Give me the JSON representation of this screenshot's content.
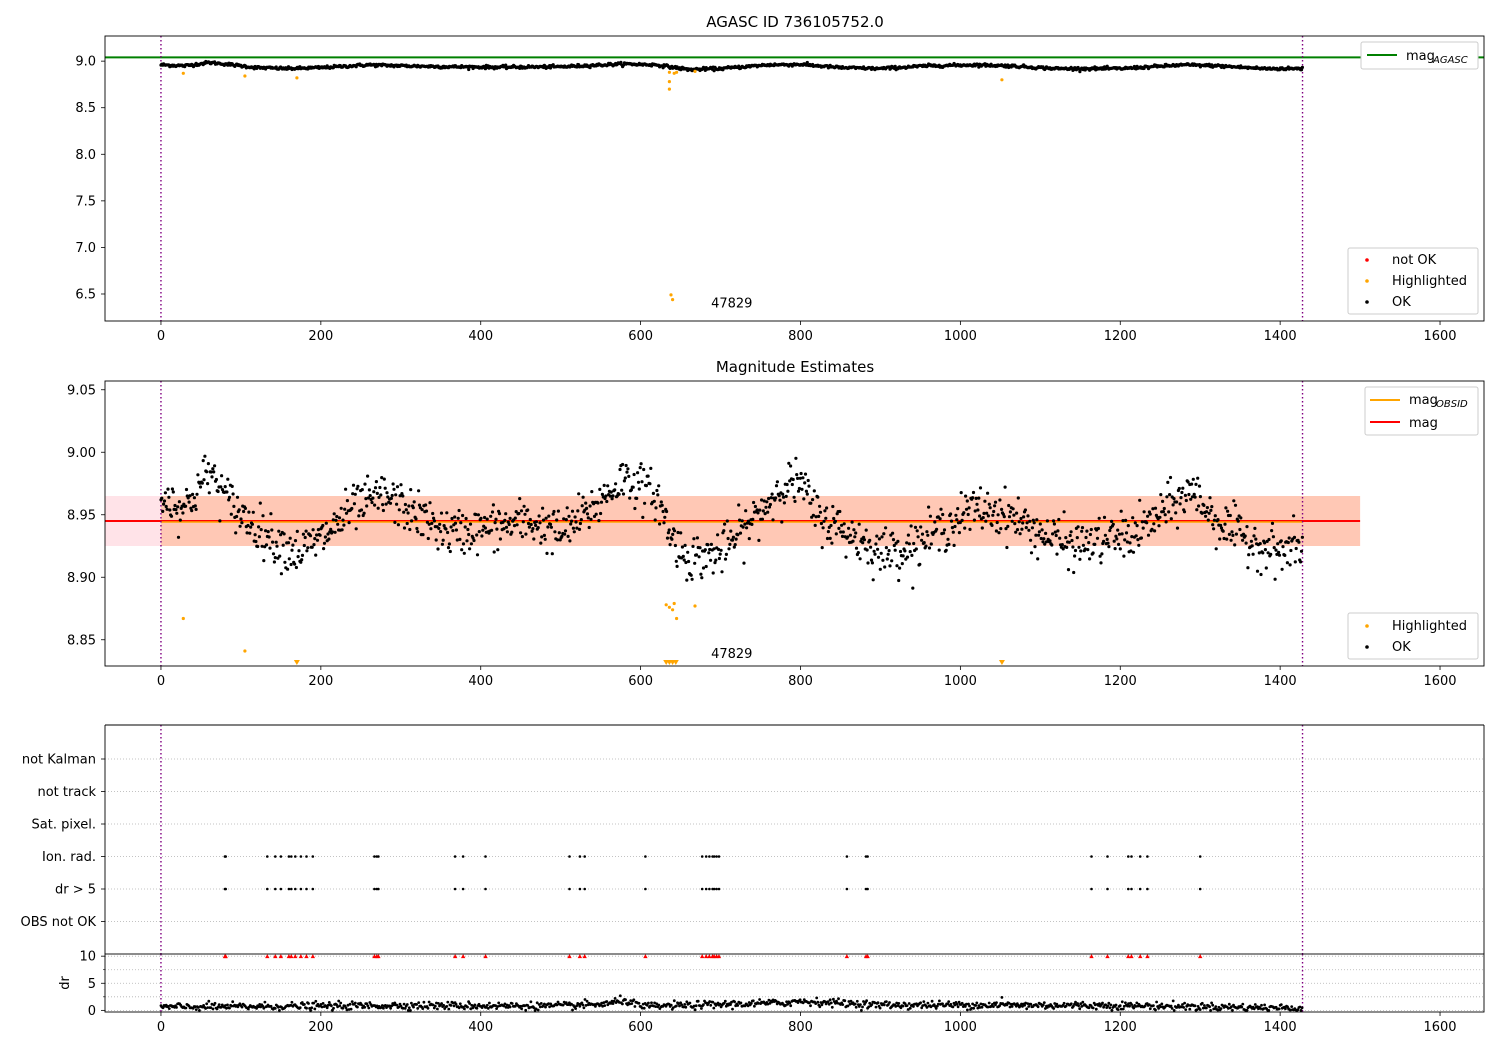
{
  "colors": {
    "ok": "#000000",
    "highlighted": "#ffa500",
    "not_ok": "#ff0000",
    "mag_agasc": "#008000",
    "mag": "#ff0000",
    "mag_obsid": "#ffa500",
    "band_outer": "#ffc0cb",
    "band_inner": "#ffb38a",
    "obs_boundary": "#800080",
    "grid": "#b0b0b0"
  },
  "chart_data": [
    {
      "type": "scatter",
      "title": "AGASC ID 736105752.0",
      "xlabel": "",
      "ylabel": "",
      "xlim": [
        -70,
        1655
      ],
      "ylim": [
        6.21,
        9.27
      ],
      "xticks": [
        0,
        200,
        400,
        600,
        800,
        1000,
        1200,
        1400,
        1600
      ],
      "yticks": [
        6.5,
        7.0,
        7.5,
        8.0,
        8.5,
        9.0
      ],
      "ytick_labels": [
        "6.5",
        "7.0",
        "7.5",
        "8.0",
        "8.5",
        "9.0"
      ],
      "hlines": [
        {
          "name": "mag_AGASC",
          "label_main": "mag",
          "label_sub": "AGASC",
          "y": 9.04,
          "color": "#008000"
        }
      ],
      "obs_boundaries": [
        0,
        1428
      ],
      "obsid_labels": [
        {
          "text": "47829",
          "x": 714,
          "y": 6.25
        }
      ],
      "legends": [
        {
          "placement": "top-right",
          "entries": [
            {
              "label_main": "mag",
              "label_sub": "AGASC",
              "kind": "line",
              "color": "#008000"
            }
          ]
        },
        {
          "placement": "bottom-right",
          "entries": [
            {
              "label": "not OK",
              "kind": "dot",
              "color": "#ff0000"
            },
            {
              "label": "Highlighted",
              "kind": "dot",
              "color": "#ffa500"
            },
            {
              "label": "OK",
              "kind": "dot",
              "color": "#000000"
            }
          ]
        }
      ],
      "series": [
        {
          "name": "OK",
          "color": "#000000",
          "baseline": [
            [
              0,
              8.96
            ],
            [
              30,
              8.95
            ],
            [
              60,
              8.985
            ],
            [
              80,
              8.97
            ],
            [
              120,
              8.93
            ],
            [
              160,
              8.92
            ],
            [
              200,
              8.93
            ],
            [
              260,
              8.96
            ],
            [
              300,
              8.95
            ],
            [
              360,
              8.94
            ],
            [
              420,
              8.935
            ],
            [
              500,
              8.94
            ],
            [
              580,
              8.97
            ],
            [
              620,
              8.96
            ],
            [
              660,
              8.91
            ],
            [
              700,
              8.92
            ],
            [
              760,
              8.96
            ],
            [
              800,
              8.965
            ],
            [
              850,
              8.93
            ],
            [
              900,
              8.92
            ],
            [
              960,
              8.95
            ],
            [
              1020,
              8.96
            ],
            [
              1060,
              8.95
            ],
            [
              1120,
              8.92
            ],
            [
              1200,
              8.92
            ],
            [
              1280,
              8.96
            ],
            [
              1320,
              8.95
            ],
            [
              1380,
              8.92
            ],
            [
              1428,
              8.92
            ]
          ],
          "noise": 0.008,
          "x_range": [
            0,
            1428
          ],
          "step": 1.1
        },
        {
          "name": "Highlighted",
          "color": "#ffa500",
          "points": [
            [
              28,
              8.87
            ],
            [
              105,
              8.84
            ],
            [
              170,
              8.82
            ],
            [
              636,
              8.7
            ],
            [
              636,
              8.78
            ],
            [
              636,
              8.88
            ],
            [
              638,
              6.49
            ],
            [
              640,
              6.44
            ],
            [
              642,
              8.87
            ],
            [
              645,
              8.88
            ],
            [
              668,
              8.89
            ],
            [
              1052,
              8.8
            ]
          ]
        }
      ]
    },
    {
      "type": "scatter",
      "title": "Magnitude Estimates",
      "xlabel": "",
      "ylabel": "",
      "xlim": [
        -70,
        1655
      ],
      "ylim": [
        8.829,
        9.057
      ],
      "xticks": [
        0,
        200,
        400,
        600,
        800,
        1000,
        1200,
        1400,
        1600
      ],
      "yticks": [
        8.85,
        8.9,
        8.95,
        9.0,
        9.05
      ],
      "ytick_labels": [
        "8.85",
        "8.90",
        "8.95",
        "9.00",
        "9.05"
      ],
      "hlines": [
        {
          "name": "mag_OBSID",
          "y": 8.945,
          "x_range": [
            0,
            1428
          ],
          "color": "#ffa500"
        },
        {
          "name": "mag",
          "y": 8.945,
          "color": "#ff0000"
        }
      ],
      "bands": [
        {
          "y0": 8.925,
          "y1": 8.965,
          "x_range": [
            -70,
            1500
          ],
          "color": "#ffc0cb"
        },
        {
          "y0": 8.925,
          "y1": 8.965,
          "x_range": [
            0,
            1500
          ],
          "color": "#ffb38a"
        }
      ],
      "obs_boundaries": [
        0,
        1428
      ],
      "obsid_labels": [
        {
          "text": "47829",
          "x": 714,
          "y": 8.831
        }
      ],
      "legends": [
        {
          "placement": "top-right",
          "entries": [
            {
              "label_main": "mag",
              "label_sub": "OBSID",
              "kind": "line",
              "color": "#ffa500"
            },
            {
              "label": "mag",
              "kind": "line",
              "color": "#ff0000"
            }
          ]
        },
        {
          "placement": "bottom-right",
          "entries": [
            {
              "label": "Highlighted",
              "kind": "dot",
              "color": "#ffa500"
            },
            {
              "label": "OK",
              "kind": "dot",
              "color": "#000000"
            }
          ]
        }
      ],
      "series": [
        {
          "name": "OK",
          "color": "#000000",
          "baseline": [
            [
              0,
              8.965
            ],
            [
              30,
              8.955
            ],
            [
              60,
              8.985
            ],
            [
              80,
              8.965
            ],
            [
              100,
              8.95
            ],
            [
              140,
              8.93
            ],
            [
              170,
              8.92
            ],
            [
              200,
              8.93
            ],
            [
              240,
              8.955
            ],
            [
              280,
              8.965
            ],
            [
              320,
              8.95
            ],
            [
              360,
              8.935
            ],
            [
              420,
              8.94
            ],
            [
              460,
              8.945
            ],
            [
              500,
              8.935
            ],
            [
              540,
              8.955
            ],
            [
              580,
              8.98
            ],
            [
              620,
              8.965
            ],
            [
              640,
              8.93
            ],
            [
              660,
              8.915
            ],
            [
              700,
              8.92
            ],
            [
              740,
              8.945
            ],
            [
              780,
              8.975
            ],
            [
              800,
              8.975
            ],
            [
              820,
              8.95
            ],
            [
              860,
              8.935
            ],
            [
              900,
              8.92
            ],
            [
              940,
              8.925
            ],
            [
              980,
              8.94
            ],
            [
              1020,
              8.955
            ],
            [
              1060,
              8.95
            ],
            [
              1100,
              8.935
            ],
            [
              1140,
              8.925
            ],
            [
              1180,
              8.93
            ],
            [
              1220,
              8.935
            ],
            [
              1260,
              8.955
            ],
            [
              1290,
              8.97
            ],
            [
              1320,
              8.945
            ],
            [
              1360,
              8.93
            ],
            [
              1400,
              8.92
            ],
            [
              1428,
              8.925
            ]
          ],
          "noise": 0.009,
          "x_range": [
            0,
            1428
          ],
          "step": 1.1
        },
        {
          "name": "Highlighted",
          "color": "#ffa500",
          "points": [
            [
              28,
              8.867
            ],
            [
              105,
              8.841
            ],
            [
              632,
              8.878
            ],
            [
              636,
              8.876
            ],
            [
              640,
              8.874
            ],
            [
              642,
              8.879
            ],
            [
              645,
              8.867
            ],
            [
              668,
              8.877
            ]
          ]
        },
        {
          "name": "Highlighted-below-axis",
          "color": "#ffa500",
          "marker": "down-triangle",
          "points": [
            [
              170,
              8.829
            ],
            [
              632,
              8.829
            ],
            [
              636,
              8.829
            ],
            [
              640,
              8.829
            ],
            [
              644,
              8.829
            ],
            [
              1052,
              8.829
            ]
          ]
        }
      ]
    },
    {
      "type": "scatter",
      "title": "",
      "xlabel": "",
      "ylabel": "",
      "xlim": [
        -70,
        1655
      ],
      "xticks": [
        0,
        200,
        400,
        600,
        800,
        1000,
        1200,
        1400,
        1600
      ],
      "obs_boundaries": [
        0,
        1428
      ],
      "flag_rows": [
        "not Kalman",
        "not track",
        "Sat. pixel.",
        "Ion. rad.",
        "dr > 5",
        "OBS not OK"
      ],
      "flags": {
        "Ion. rad.": [
          80,
          81,
          133,
          143,
          150,
          160,
          163,
          168,
          175,
          182,
          190,
          267,
          270,
          272,
          368,
          378,
          406,
          511,
          524,
          530,
          606,
          677,
          682,
          686,
          690,
          692,
          695,
          698,
          858,
          882,
          884,
          1164,
          1184,
          1210,
          1214,
          1225,
          1234,
          1300
        ],
        "dr > 5": [
          80,
          81,
          133,
          143,
          150,
          160,
          163,
          168,
          175,
          182,
          190,
          267,
          270,
          272,
          368,
          378,
          406,
          511,
          524,
          530,
          606,
          677,
          682,
          686,
          690,
          692,
          695,
          698,
          858,
          882,
          884,
          1164,
          1184,
          1210,
          1214,
          1225,
          1234,
          1300
        ]
      }
    },
    {
      "type": "scatter",
      "title": "",
      "xlabel": "",
      "ylabel": "dr",
      "xlim": [
        -70,
        1655
      ],
      "ylim": [
        -0.3,
        10.4
      ],
      "xticks": [
        0,
        200,
        400,
        600,
        800,
        1000,
        1200,
        1400,
        1600
      ],
      "yticks": [
        0,
        5,
        10
      ],
      "ytick_labels": [
        "0",
        "5",
        "10"
      ],
      "obs_boundaries": [
        0,
        1428
      ],
      "series": [
        {
          "name": "dr",
          "color": "#000000",
          "baseline": [
            [
              0,
              0.6
            ],
            [
              100,
              0.7
            ],
            [
              300,
              0.9
            ],
            [
              500,
              0.8
            ],
            [
              560,
              1.2
            ],
            [
              580,
              1.9
            ],
            [
              600,
              0.7
            ],
            [
              780,
              1.4
            ],
            [
              800,
              1.7
            ],
            [
              900,
              1.0
            ],
            [
              1000,
              1.0
            ],
            [
              1200,
              0.9
            ],
            [
              1428,
              0.4
            ]
          ],
          "noise": 0.35,
          "x_range": [
            0,
            1428
          ],
          "step": 1.3
        },
        {
          "name": "dr-outliers",
          "color": "#000000",
          "points": [
            [
              1052,
              2.4
            ]
          ]
        },
        {
          "name": "dr-clipped",
          "color": "#ff0000",
          "marker": "up-triangle",
          "x_from": "flags.dr > 5",
          "y": 10
        }
      ]
    }
  ],
  "tick_labels_x": [
    "0",
    "200",
    "400",
    "600",
    "800",
    "1000",
    "1200",
    "1400",
    "1600"
  ],
  "texts": {
    "title1": "AGASC ID 736105752.0",
    "title2": "Magnitude Estimates",
    "obsid1": "47829",
    "obsid2": "47829",
    "ylabel4": "dr",
    "legend1_mag": "mag",
    "legend1_sub": "AGASC",
    "legend1b_notok": "not OK",
    "legend1b_high": "Highlighted",
    "legend1b_ok": "OK",
    "legend2_mag_obsid": "mag",
    "legend2_sub": "OBSID",
    "legend2_mag": "mag",
    "legend2b_high": "Highlighted",
    "legend2b_ok": "OK",
    "flag_rows": [
      "not Kalman",
      "not track",
      "Sat. pixel.",
      "Ion. rad.",
      "dr > 5",
      "OBS not OK"
    ]
  }
}
